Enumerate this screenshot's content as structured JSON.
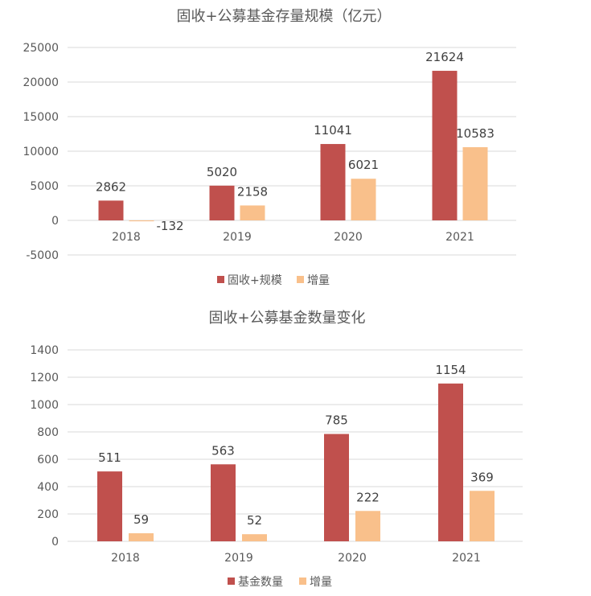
{
  "chart_data": [
    {
      "type": "bar",
      "title": "固收+公募基金存量规模（亿元）",
      "categories": [
        "2018",
        "2019",
        "2020",
        "2021"
      ],
      "series": [
        {
          "name": "固收+规模",
          "values": [
            2862,
            5020,
            11041,
            21624
          ],
          "color": "#c0504d"
        },
        {
          "name": "增量",
          "values": [
            -132,
            2158,
            6021,
            10583
          ],
          "color": "#f9c08b"
        }
      ],
      "ylim": [
        -5000,
        25000
      ],
      "yticks": [
        "25000",
        "20000",
        "15000",
        "10000",
        "5000",
        "0",
        "-5000"
      ],
      "grid": true,
      "legend": "bottom"
    },
    {
      "type": "bar",
      "title": "固收+公募基金数量变化",
      "categories": [
        "2018",
        "2019",
        "2020",
        "2021"
      ],
      "series": [
        {
          "name": "基金数量",
          "values": [
            511,
            563,
            785,
            1154
          ],
          "color": "#c0504d"
        },
        {
          "name": "增量",
          "values": [
            59,
            52,
            222,
            369
          ],
          "color": "#f9c08b"
        }
      ],
      "ylim": [
        0,
        1400
      ],
      "yticks": [
        "1400",
        "1200",
        "1000",
        "800",
        "600",
        "400",
        "200",
        "0"
      ],
      "grid": true,
      "legend": "bottom"
    }
  ]
}
